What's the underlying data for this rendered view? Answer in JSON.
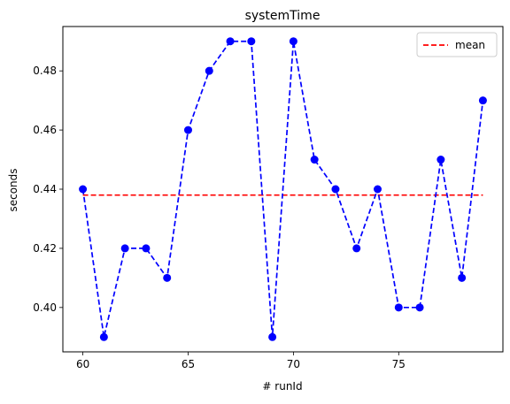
{
  "chart_data": {
    "type": "line",
    "title": "systemTime",
    "xlabel": "# runId",
    "ylabel": "seconds",
    "xlim": [
      59.05,
      79.95
    ],
    "ylim": [
      0.385,
      0.495
    ],
    "xticks": [
      60,
      65,
      70,
      75
    ],
    "xtick_labels": [
      "60",
      "65",
      "70",
      "75"
    ],
    "yticks": [
      0.4,
      0.42,
      0.44,
      0.46,
      0.48
    ],
    "ytick_labels": [
      "0.40",
      "0.42",
      "0.44",
      "0.46",
      "0.48"
    ],
    "grid": false,
    "legend_position": "top-right",
    "series": [
      {
        "style": "dashed-with-markers",
        "color": "#0000ff",
        "x": [
          60,
          61,
          62,
          63,
          64,
          65,
          66,
          67,
          68,
          69,
          70,
          71,
          72,
          73,
          74,
          75,
          76,
          77,
          78,
          79
        ],
        "y": [
          0.44,
          0.39,
          0.42,
          0.42,
          0.41,
          0.46,
          0.48,
          0.49,
          0.49,
          0.39,
          0.49,
          0.45,
          0.44,
          0.42,
          0.44,
          0.4,
          0.4,
          0.45,
          0.41,
          0.47
        ]
      },
      {
        "name": "mean",
        "style": "dashed",
        "color": "#ff0000",
        "x": [
          60,
          79
        ],
        "y": [
          0.438,
          0.438
        ]
      }
    ]
  }
}
